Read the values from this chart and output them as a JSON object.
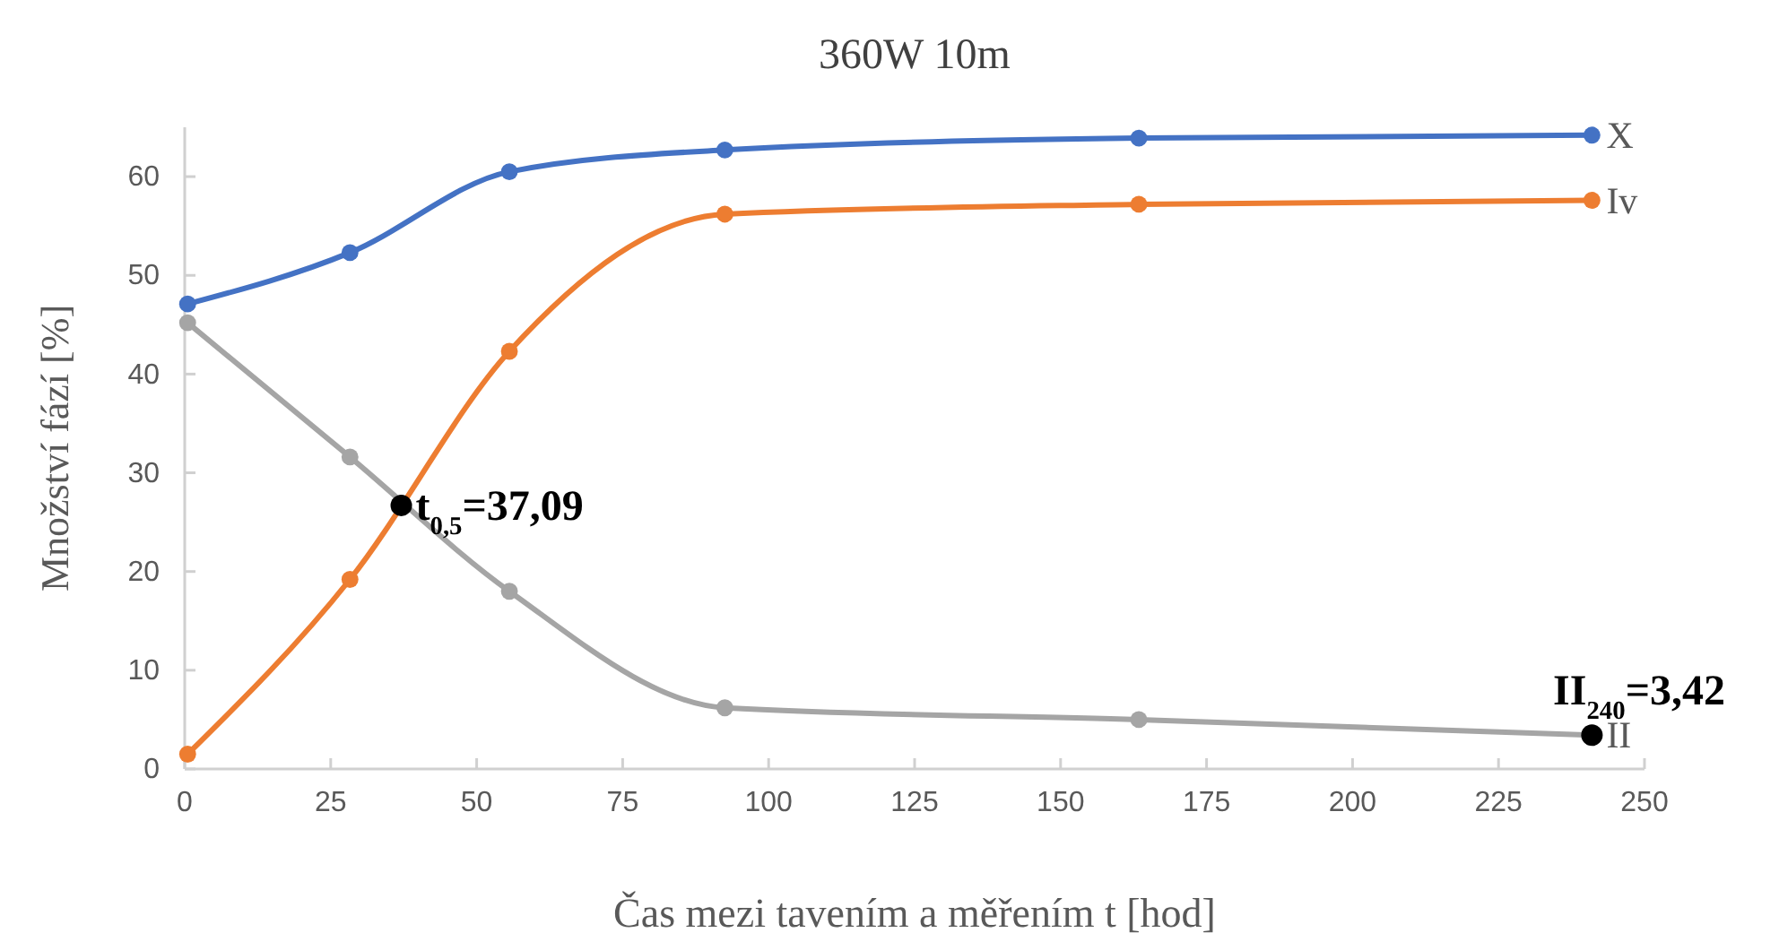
{
  "chart_data": {
    "type": "line",
    "title": "360W 10m",
    "xlabel": "Čas mezi tavením a měřením t [hod]",
    "ylabel": "Množství fází [%]",
    "xlim": [
      0,
      250
    ],
    "xticks": [
      0,
      25,
      50,
      75,
      100,
      125,
      150,
      175,
      200,
      225,
      250
    ],
    "ylim": [
      0,
      65
    ],
    "yticks": [
      0,
      10,
      20,
      30,
      40,
      50,
      60
    ],
    "grid": false,
    "marker": "circle",
    "line_style": "solid",
    "x": [
      0.5,
      28.3,
      55.6,
      92.5,
      163.4,
      241
    ],
    "series": [
      {
        "name": "X",
        "color": "#4472c4",
        "values": [
          47.1,
          52.3,
          60.5,
          62.7,
          63.9,
          64.2
        ]
      },
      {
        "name": "Iv",
        "color": "#ed7d31",
        "values": [
          1.5,
          19.2,
          42.3,
          56.2,
          57.2,
          57.6
        ]
      },
      {
        "name": "II",
        "color": "#a5a5a5",
        "values": [
          45.2,
          31.6,
          18.0,
          6.2,
          5.0,
          3.42
        ]
      }
    ],
    "annotations": [
      {
        "text": "t$_{0,5}$=37,09",
        "x": 37.09,
        "y": 26.7
      },
      {
        "text": "II$_{240}$=3,42",
        "x": 241,
        "y": 3.42
      }
    ]
  }
}
